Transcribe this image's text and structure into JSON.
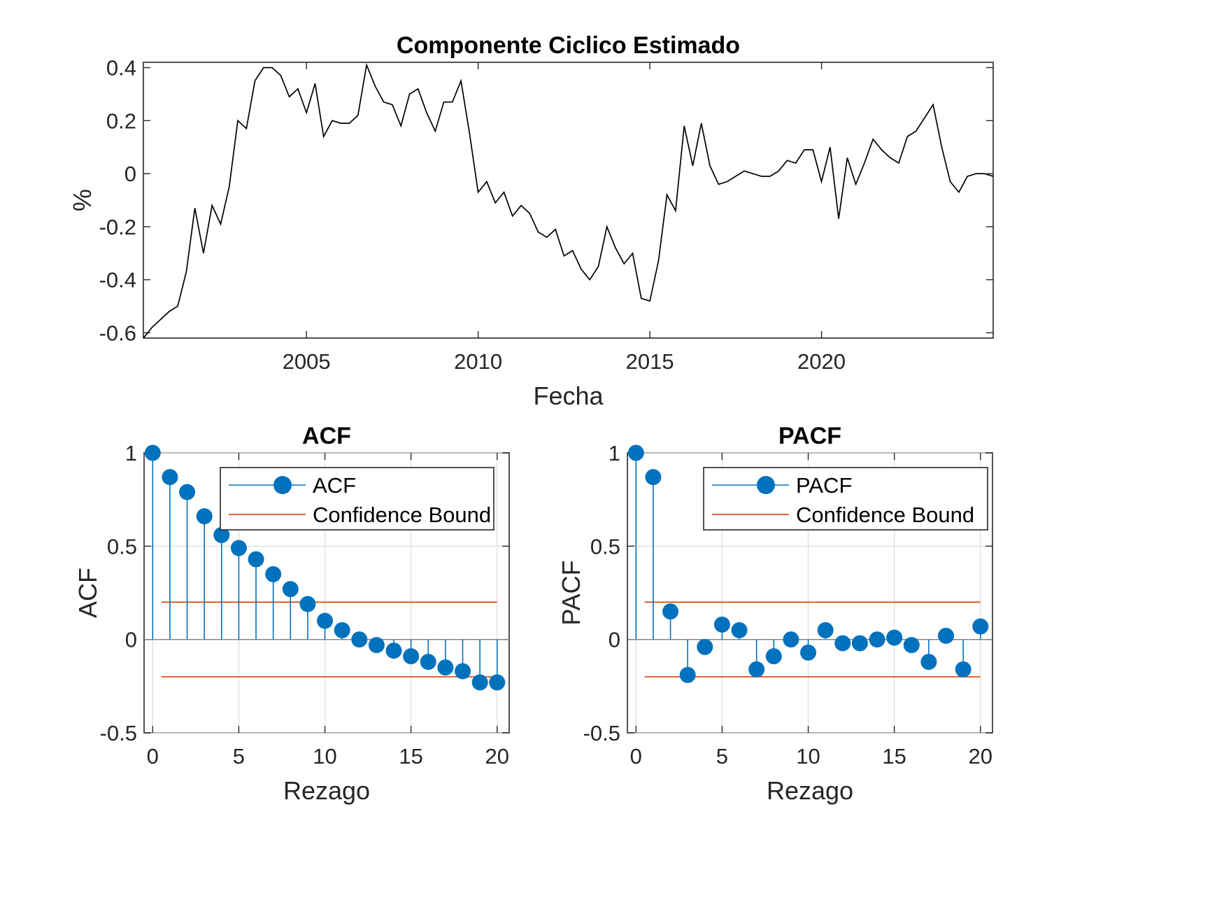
{
  "chart_data": [
    {
      "type": "line",
      "title": "Componente Ciclico Estimado",
      "xlabel": "Fecha",
      "ylabel": "%",
      "xlim": [
        2000.25,
        2025.0
      ],
      "ylim": [
        -0.62,
        0.42
      ],
      "xticks": [
        2005,
        2010,
        2015,
        2020
      ],
      "yticks": [
        -0.6,
        -0.4,
        -0.2,
        0,
        0.2,
        0.4
      ],
      "grid": false,
      "color": "#000000",
      "x": [
        2000.25,
        2000.5,
        2000.75,
        2001.0,
        2001.25,
        2001.5,
        2001.75,
        2002.0,
        2002.25,
        2002.5,
        2002.75,
        2003.0,
        2003.25,
        2003.5,
        2003.75,
        2004.0,
        2004.25,
        2004.5,
        2004.75,
        2005.0,
        2005.25,
        2005.5,
        2005.75,
        2006.0,
        2006.25,
        2006.5,
        2006.75,
        2007.0,
        2007.25,
        2007.5,
        2007.75,
        2008.0,
        2008.25,
        2008.5,
        2008.75,
        2009.0,
        2009.25,
        2009.5,
        2009.75,
        2010.0,
        2010.25,
        2010.5,
        2010.75,
        2011.0,
        2011.25,
        2011.5,
        2011.75,
        2012.0,
        2012.25,
        2012.5,
        2012.75,
        2013.0,
        2013.25,
        2013.5,
        2013.75,
        2014.0,
        2014.25,
        2014.5,
        2014.75,
        2015.0,
        2015.25,
        2015.5,
        2015.75,
        2016.0,
        2016.25,
        2016.5,
        2016.75,
        2017.0,
        2017.25,
        2017.5,
        2017.75,
        2018.0,
        2018.25,
        2018.5,
        2018.75,
        2019.0,
        2019.25,
        2019.5,
        2019.75,
        2020.0,
        2020.25,
        2020.5,
        2020.75,
        2021.0,
        2021.25,
        2021.5,
        2021.75,
        2022.0,
        2022.25,
        2022.5,
        2022.75,
        2023.0,
        2023.25,
        2023.5,
        2023.75,
        2024.0,
        2024.25,
        2024.5,
        2024.75,
        2025.0
      ],
      "y": [
        -0.62,
        -0.58,
        -0.55,
        -0.52,
        -0.5,
        -0.37,
        -0.13,
        -0.3,
        -0.12,
        -0.19,
        -0.05,
        0.2,
        0.17,
        0.35,
        0.4,
        0.4,
        0.37,
        0.29,
        0.32,
        0.23,
        0.34,
        0.14,
        0.2,
        0.19,
        0.19,
        0.22,
        0.41,
        0.33,
        0.27,
        0.26,
        0.18,
        0.3,
        0.32,
        0.23,
        0.16,
        0.27,
        0.27,
        0.35,
        0.15,
        -0.07,
        -0.03,
        -0.11,
        -0.07,
        -0.16,
        -0.12,
        -0.15,
        -0.22,
        -0.24,
        -0.21,
        -0.31,
        -0.29,
        -0.36,
        -0.4,
        -0.35,
        -0.2,
        -0.28,
        -0.34,
        -0.3,
        -0.47,
        -0.48,
        -0.33,
        -0.08,
        -0.14,
        0.18,
        0.03,
        0.19,
        0.03,
        -0.04,
        -0.03,
        -0.01,
        0.01,
        0.0,
        -0.01,
        -0.01,
        0.01,
        0.05,
        0.04,
        0.09,
        0.09,
        -0.03,
        0.1,
        -0.17,
        0.06,
        -0.04,
        0.04,
        0.13,
        0.09,
        0.06,
        0.04,
        0.14,
        0.16,
        0.21,
        0.26,
        0.1,
        -0.03,
        -0.07,
        -0.01,
        0.0,
        0.0,
        -0.01
      ]
    },
    {
      "type": "stem",
      "title": "ACF",
      "xlabel": "Rezago",
      "ylabel": "ACF",
      "xlim": [
        -0.5,
        20.7
      ],
      "ylim": [
        -0.5,
        1.0
      ],
      "xticks": [
        0,
        5,
        10,
        15,
        20
      ],
      "yticks": [
        -0.5,
        0,
        0.5,
        1
      ],
      "grid": true,
      "legend": {
        "position": "top-right",
        "entries": [
          "ACF",
          "Confidence Bound"
        ]
      },
      "confidence_bound": 0.2,
      "confidence_x": [
        0.5,
        20
      ],
      "stem_color": "#0072BD",
      "bound_color": "#D95319",
      "x": [
        0,
        1,
        2,
        3,
        4,
        5,
        6,
        7,
        8,
        9,
        10,
        11,
        12,
        13,
        14,
        15,
        16,
        17,
        18,
        19,
        20
      ],
      "values": [
        1.0,
        0.87,
        0.79,
        0.66,
        0.56,
        0.49,
        0.43,
        0.35,
        0.27,
        0.19,
        0.1,
        0.05,
        0.0,
        -0.03,
        -0.06,
        -0.09,
        -0.12,
        -0.15,
        -0.17,
        -0.23,
        -0.23
      ]
    },
    {
      "type": "stem",
      "title": "PACF",
      "xlabel": "Rezago",
      "ylabel": "PACF",
      "xlim": [
        -0.5,
        20.7
      ],
      "ylim": [
        -0.5,
        1.0
      ],
      "xticks": [
        0,
        5,
        10,
        15,
        20
      ],
      "yticks": [
        -0.5,
        0,
        0.5,
        1
      ],
      "grid": true,
      "legend": {
        "position": "top-right",
        "entries": [
          "PACF",
          "Confidence Bound"
        ]
      },
      "confidence_bound": 0.2,
      "confidence_x": [
        0.5,
        20
      ],
      "stem_color": "#0072BD",
      "bound_color": "#D95319",
      "x": [
        0,
        1,
        2,
        3,
        4,
        5,
        6,
        7,
        8,
        9,
        10,
        11,
        12,
        13,
        14,
        15,
        16,
        17,
        18,
        19,
        20
      ],
      "values": [
        1.0,
        0.87,
        0.15,
        -0.19,
        -0.04,
        0.08,
        0.05,
        -0.16,
        -0.09,
        0.0,
        -0.07,
        0.05,
        -0.02,
        -0.02,
        0.0,
        0.01,
        -0.03,
        -0.12,
        0.02,
        -0.16,
        0.07
      ]
    }
  ]
}
